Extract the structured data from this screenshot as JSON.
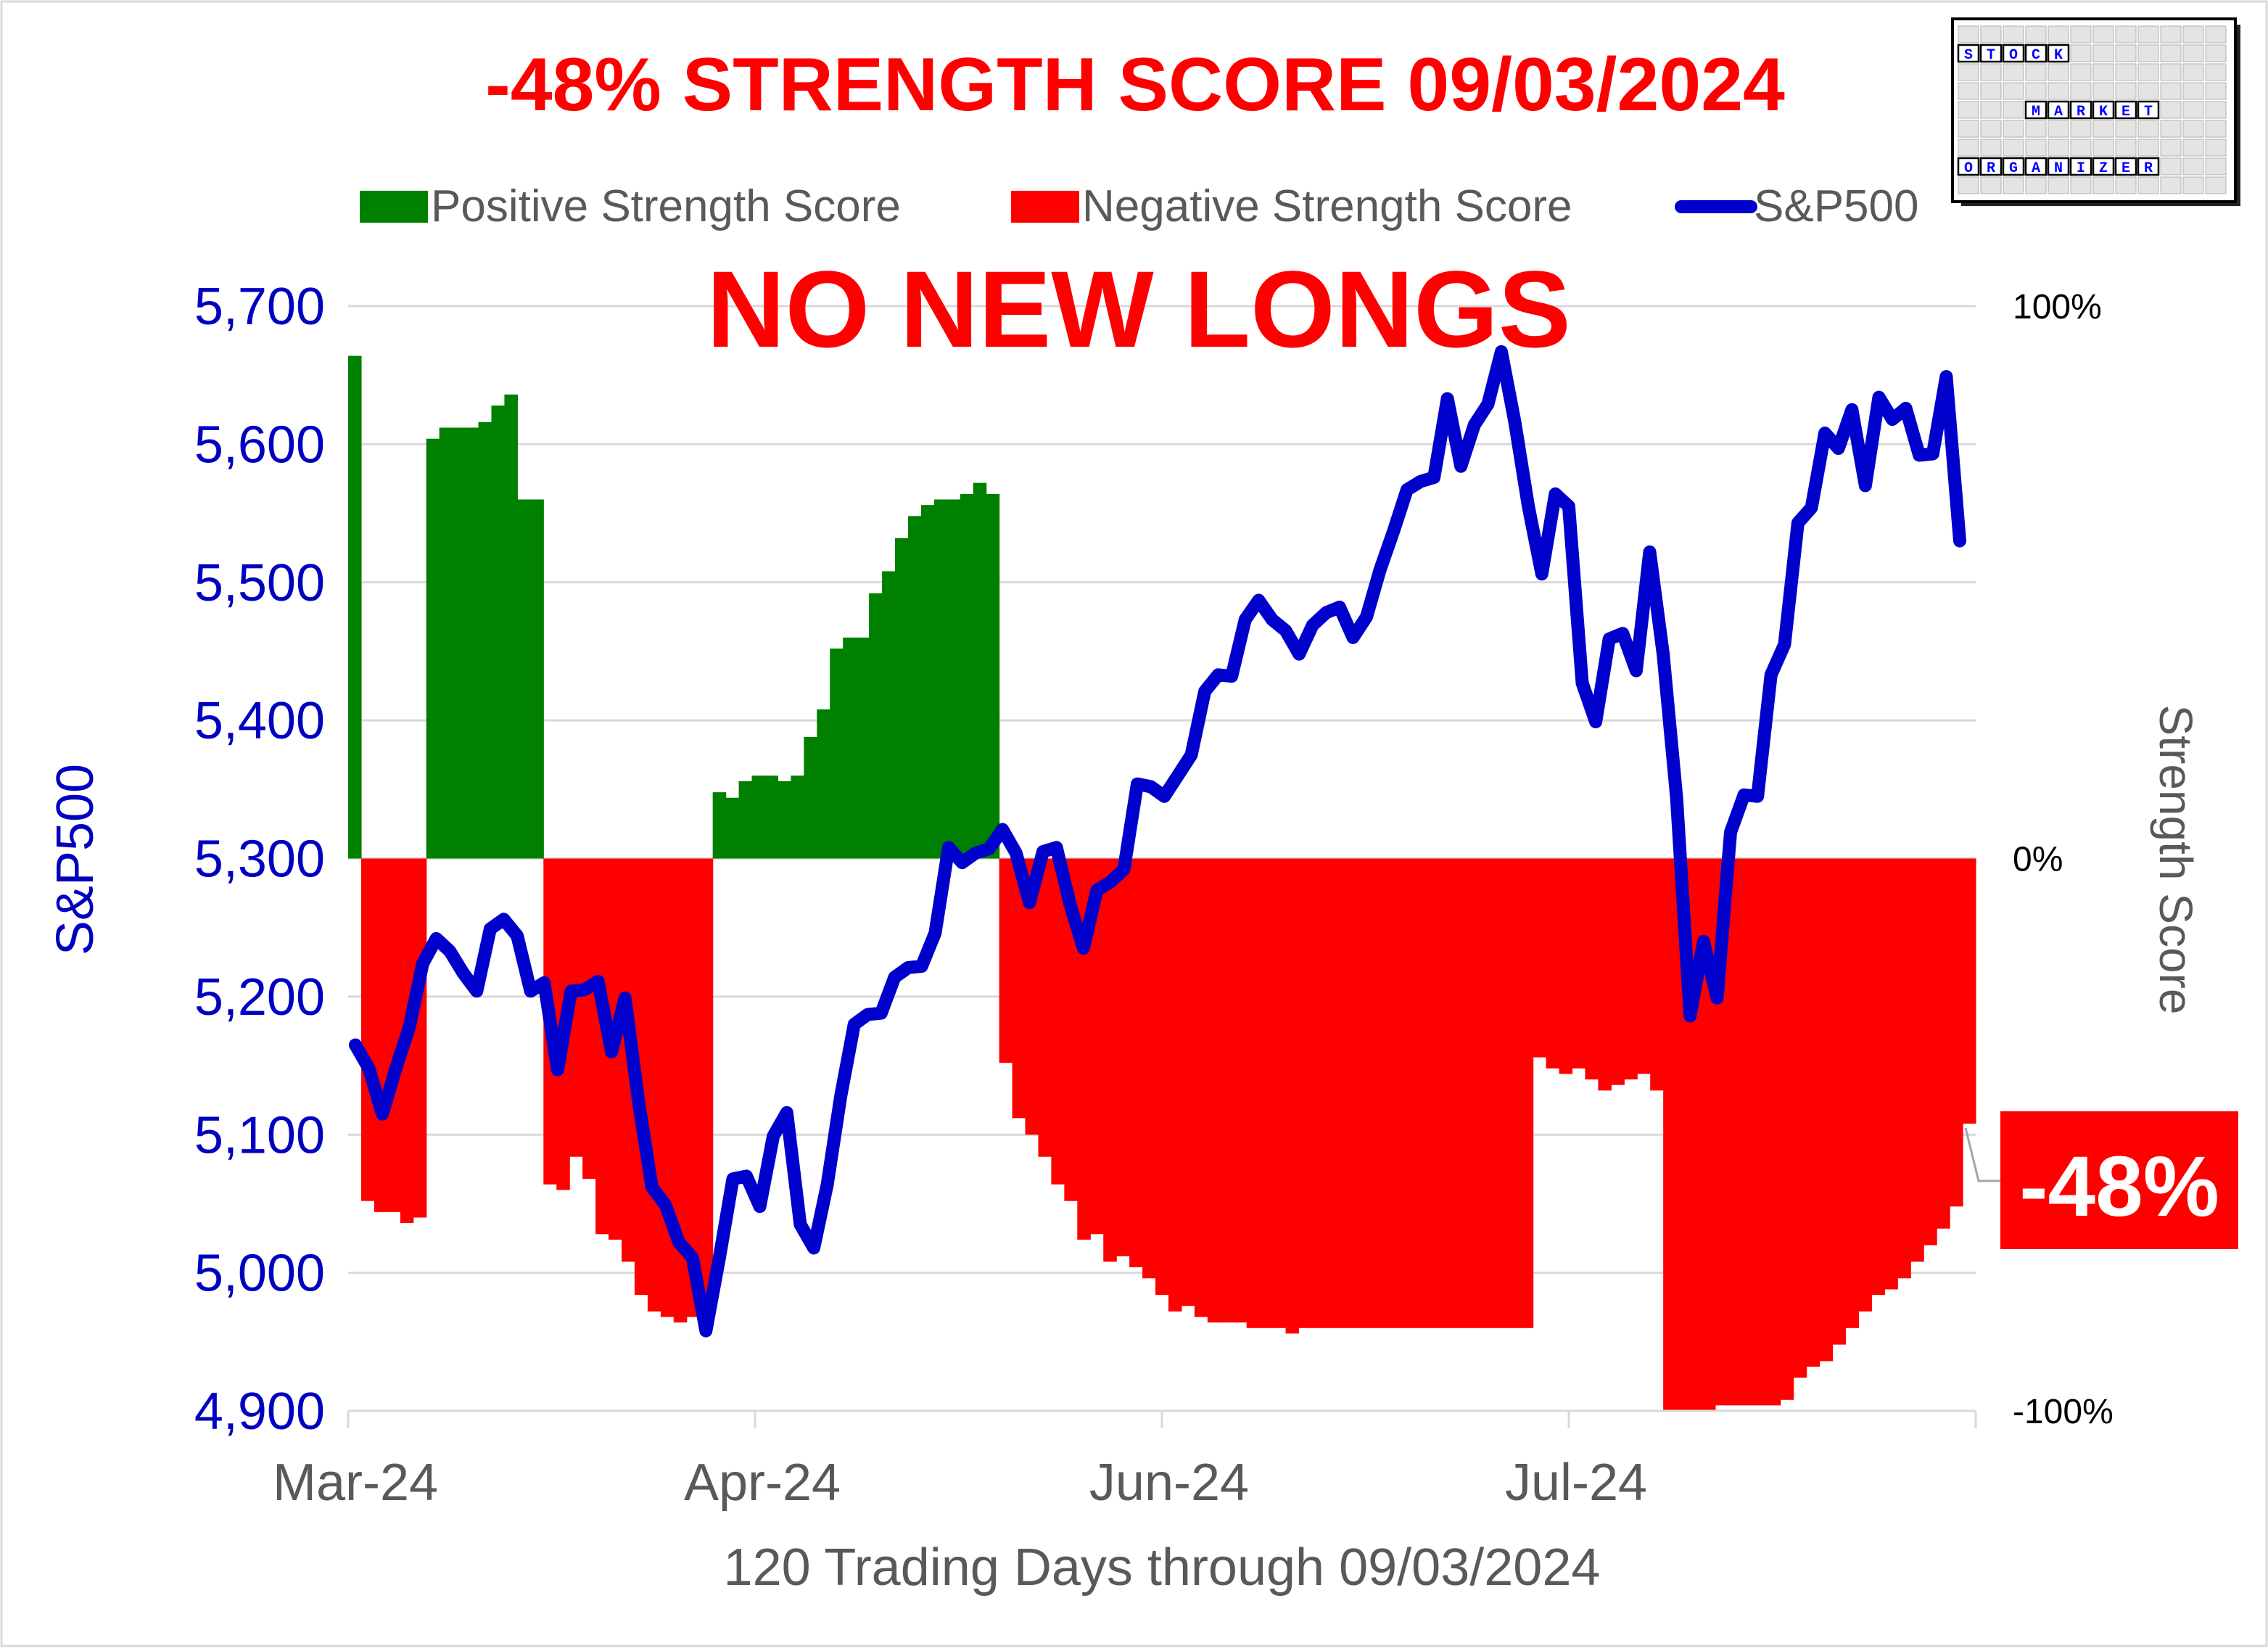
{
  "chart_data": {
    "type": "bar",
    "title": "-48% STRENGTH SCORE 09/03/2024",
    "banner": "NO NEW LONGS",
    "xlabel": "120 Trading Days through 09/03/2024",
    "ylabel_left": "S&P500",
    "ylabel_right": "Strength Score",
    "x_tick_labels": [
      "Mar-24",
      "Apr-24",
      "Jun-24",
      "Jul-24"
    ],
    "left_axis": {
      "ylim": [
        4900,
        5700
      ],
      "ticks": [
        "4,900",
        "5,000",
        "5,100",
        "5,200",
        "5,300",
        "5,400",
        "5,500",
        "5,600",
        "5,700"
      ]
    },
    "right_axis": {
      "ylim": [
        -100,
        100
      ],
      "ticks": [
        "-100%",
        "0%",
        "100%"
      ]
    },
    "grid": "horizontal",
    "legend": [
      "Positive Strength Score",
      "Negative Strength Score",
      "S&P500"
    ],
    "legend_position": "top",
    "colors": {
      "positive": "#008000",
      "negative": "#ff0000",
      "sp500": "#0000cc"
    },
    "callout": "-48%",
    "logo_rows": [
      "STOCK",
      "MARKET",
      "ORGANIZER"
    ],
    "series": [
      {
        "name": "Strength Score",
        "kind": "bar",
        "axis": "right",
        "values": [
          91,
          -62,
          -64,
          -64,
          -66,
          -65,
          76,
          78,
          78,
          78,
          79,
          82,
          84,
          65,
          65,
          -59,
          -60,
          -54,
          -58,
          -68,
          -69,
          -73,
          -79,
          -82,
          -83,
          -84,
          -83,
          -82,
          12,
          11,
          14,
          15,
          15,
          14,
          15,
          22,
          27,
          38,
          40,
          40,
          48,
          52,
          58,
          62,
          64,
          65,
          65,
          66,
          68,
          66,
          -37,
          -47,
          -50,
          -54,
          -59,
          -62,
          -69,
          -68,
          -73,
          -72,
          -74,
          -76,
          -79,
          -82,
          -81,
          -83,
          -84,
          -84,
          -84,
          -85,
          -85,
          -85,
          -86,
          -85,
          -85,
          -85,
          -85,
          -85,
          -85,
          -85,
          -85,
          -85,
          -85,
          -85,
          -85,
          -85,
          -85,
          -85,
          -85,
          -85,
          -85,
          -36,
          -38,
          -39,
          -38,
          -40,
          -42,
          -41,
          -40,
          -39,
          -42,
          -100,
          -100,
          -100,
          -100,
          -99,
          -99,
          -99,
          -99,
          -99,
          -98,
          -94,
          -92,
          -91,
          -88,
          -85,
          -82,
          -79,
          -78,
          -76,
          -73,
          -70,
          -67,
          -63,
          -48
        ]
      },
      {
        "name": "S&P500",
        "kind": "line",
        "axis": "left",
        "values": [
          5165,
          5148,
          5115,
          5148,
          5178,
          5224,
          5242,
          5233,
          5217,
          5204,
          5249,
          5256,
          5244,
          5204,
          5210,
          5147,
          5204,
          5205,
          5211,
          5160,
          5199,
          5124,
          5062,
          5049,
          5022,
          5011,
          4958,
          5011,
          5068,
          5070,
          5048,
          5099,
          5116,
          5035,
          5018,
          5064,
          5128,
          5180,
          5187,
          5188,
          5214,
          5221,
          5222,
          5246,
          5308,
          5297,
          5304,
          5307,
          5321,
          5304,
          5268,
          5305,
          5308,
          5267,
          5235,
          5277,
          5283,
          5292,
          5354,
          5352,
          5345,
          5360,
          5375,
          5421,
          5433,
          5432,
          5473,
          5487,
          5473,
          5465,
          5448,
          5469,
          5478,
          5482,
          5460,
          5475,
          5509,
          5537,
          5567,
          5573,
          5576,
          5633,
          5584,
          5614,
          5629,
          5667,
          5616,
          5555,
          5506,
          5564,
          5555,
          5427,
          5399,
          5459,
          5463,
          5436,
          5522,
          5448,
          5344,
          5186,
          5240,
          5199,
          5319,
          5346,
          5345,
          5433,
          5455,
          5543,
          5554,
          5608,
          5597,
          5625,
          5570,
          5634,
          5618,
          5626,
          5592,
          5593,
          5649,
          5530
        ]
      }
    ]
  }
}
